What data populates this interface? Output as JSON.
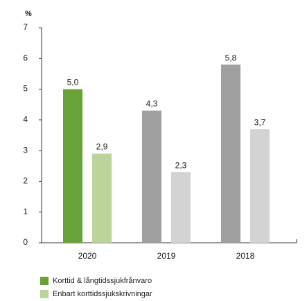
{
  "chart_data": {
    "type": "bar",
    "y_label": "%",
    "categories": [
      "2020",
      "2019",
      "2018"
    ],
    "series": [
      {
        "name": "Korttid & långtidssjukfrånvaro",
        "color": "#6aa23a",
        "colors": [
          "#6aa23a",
          "#a0a0a0",
          "#a0a0a0"
        ],
        "values": [
          5.0,
          4.3,
          5.8
        ],
        "value_labels": [
          "5,0",
          "4,3",
          "5,8"
        ]
      },
      {
        "name": "Enbart korttidssjukskrivningar",
        "color": "#bcd39a",
        "colors": [
          "#bcd39a",
          "#d3d3d3",
          "#d3d3d3"
        ],
        "values": [
          2.9,
          2.3,
          3.7
        ],
        "value_labels": [
          "2,9",
          "2,3",
          "3,7"
        ]
      }
    ],
    "ylim": [
      0,
      7
    ],
    "yticks": [
      0,
      1,
      2,
      3,
      4,
      5,
      6,
      7
    ],
    "grid": false
  }
}
